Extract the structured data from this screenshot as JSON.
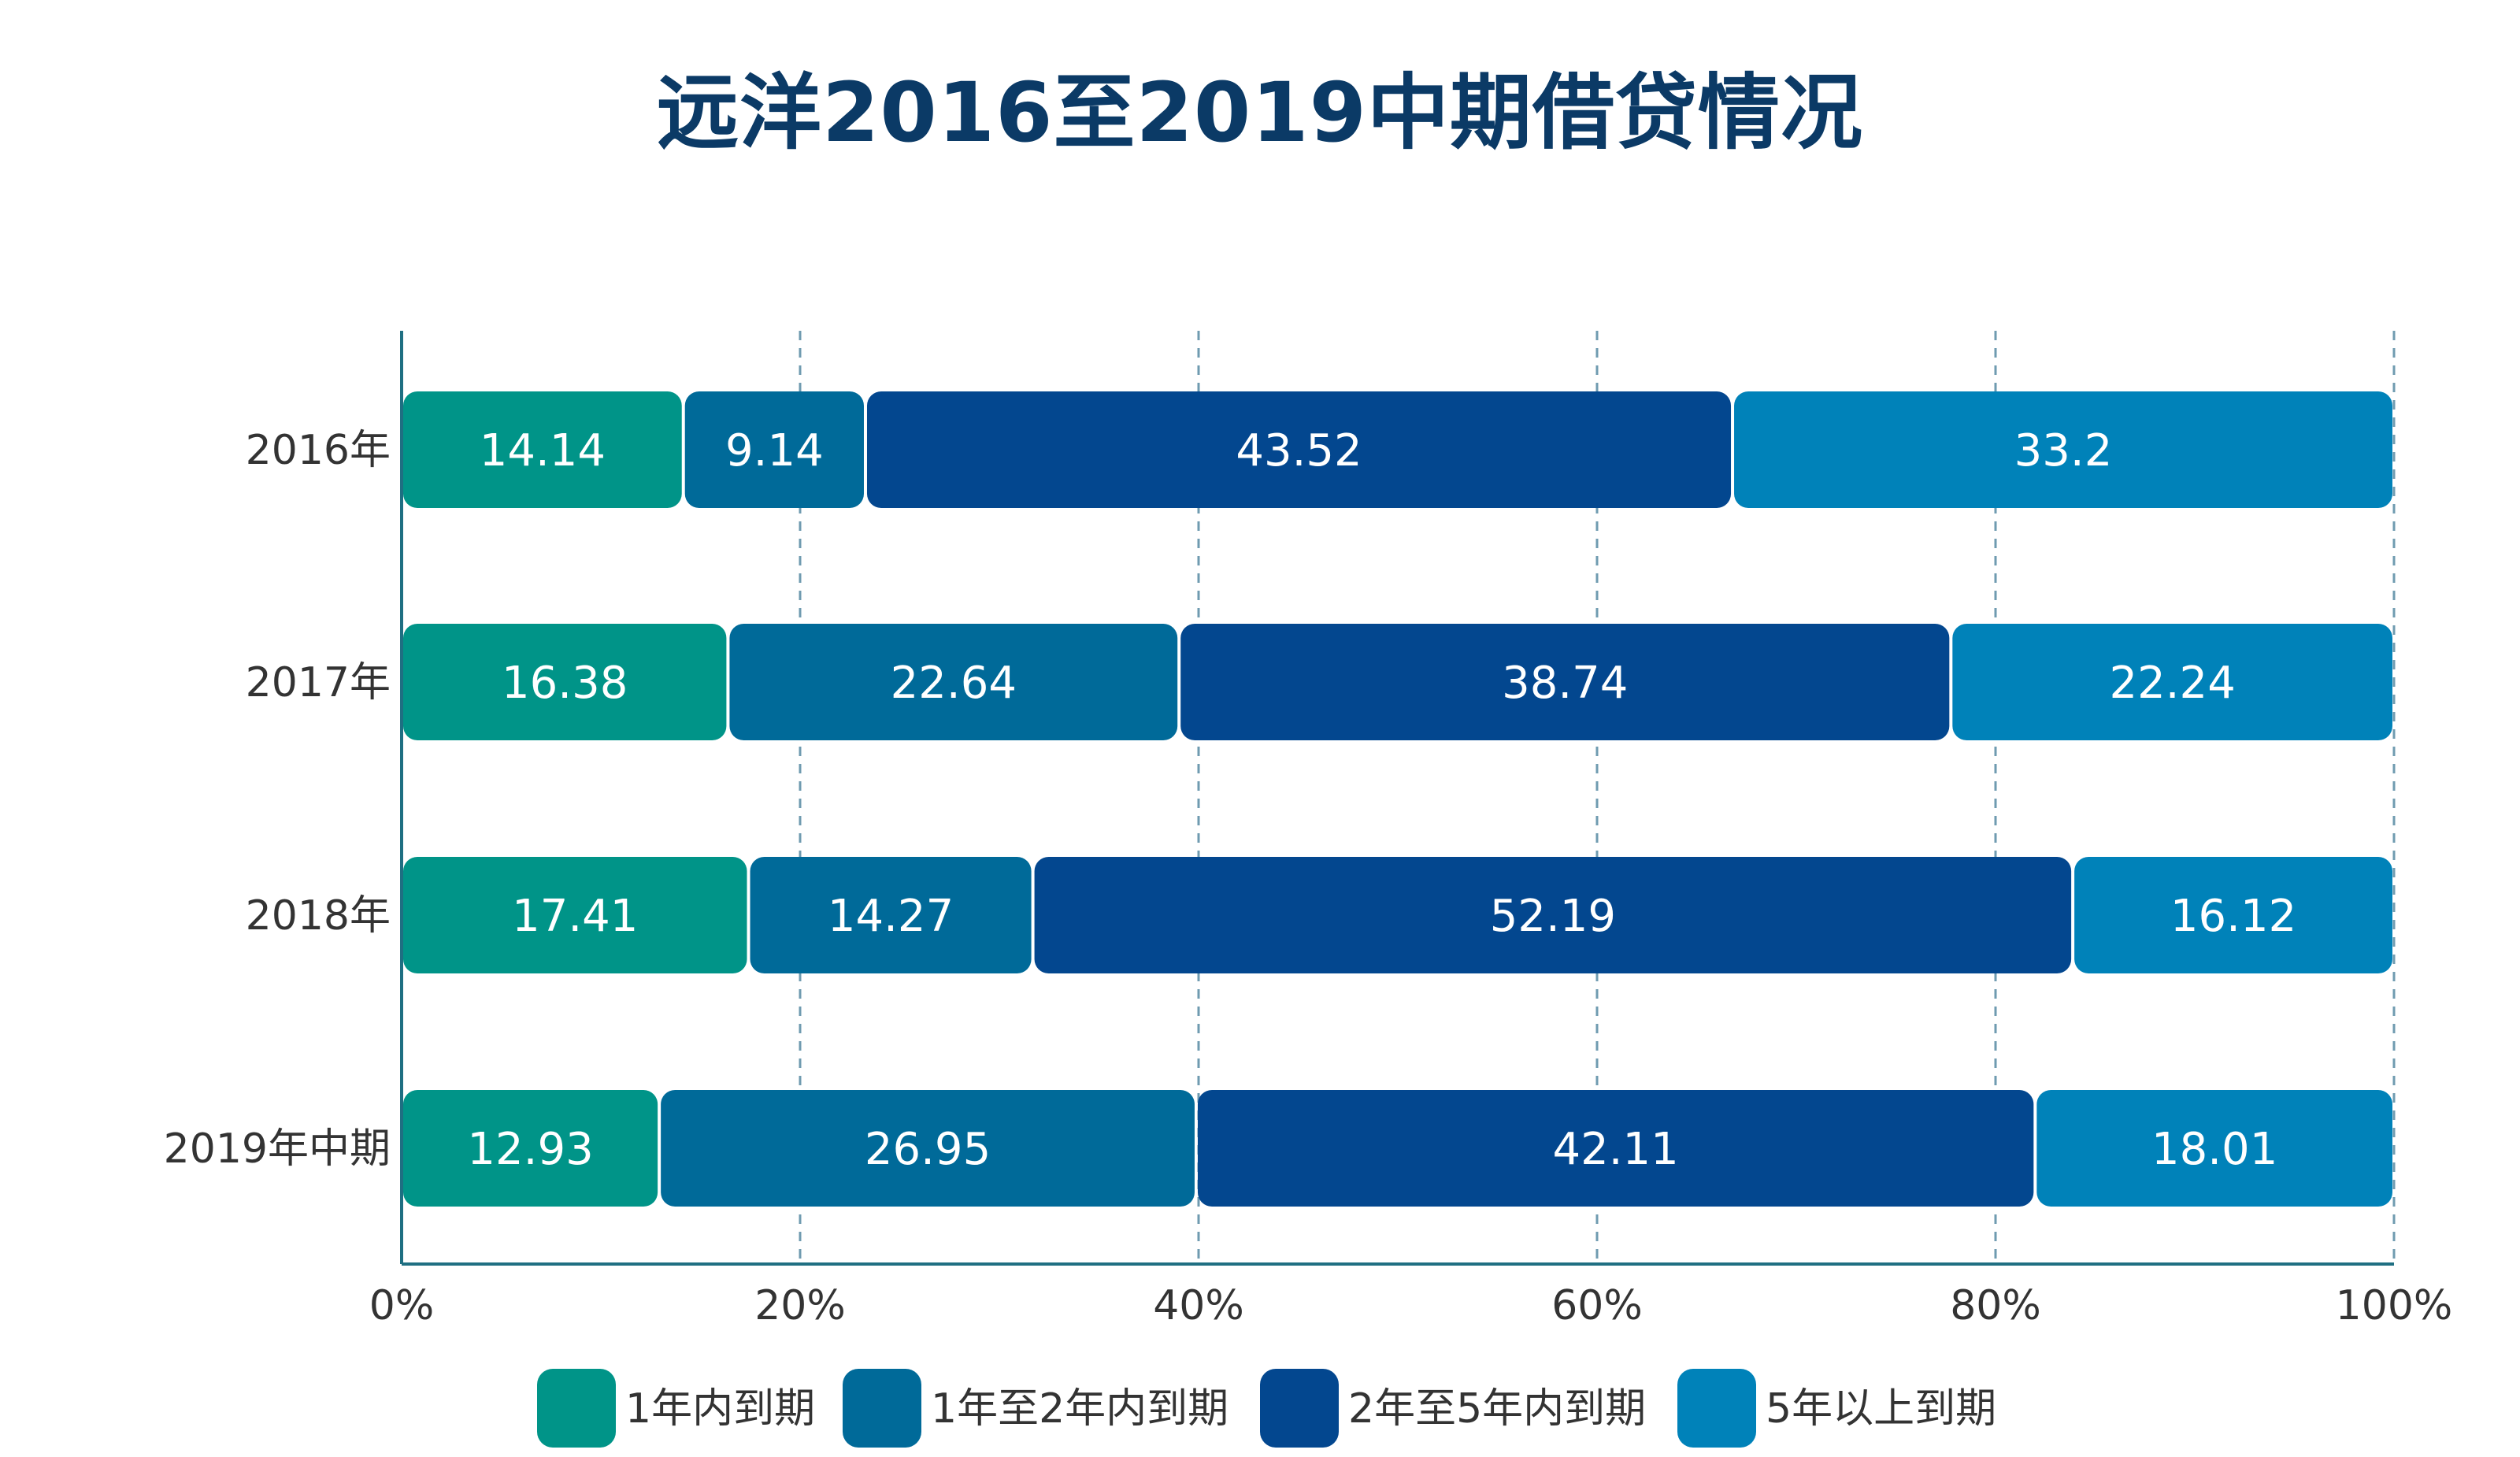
{
  "chart_data": {
    "type": "bar",
    "orientation": "horizontal",
    "stacked": true,
    "percent_stacked": true,
    "title": "远洋2016至2019中期借贷情况",
    "categories": [
      "2016年",
      "2017年",
      "2018年",
      "2019年中期"
    ],
    "series": [
      {
        "name": "1年内到期",
        "color": "#009488",
        "values": [
          14.14,
          16.38,
          17.41,
          12.93
        ]
      },
      {
        "name": "1年至2年内到期",
        "color": "#006a99",
        "values": [
          9.14,
          22.64,
          14.27,
          26.95
        ]
      },
      {
        "name": "2年至5年内到期",
        "color": "#03478f",
        "values": [
          43.52,
          38.74,
          52.19,
          42.11
        ]
      },
      {
        "name": "5年以上到期",
        "color": "#0082b9",
        "values": [
          33.2,
          22.24,
          16.12,
          18.01
        ]
      }
    ],
    "xlim": [
      0,
      100
    ],
    "xticks": [
      "0%",
      "20%",
      "40%",
      "60%",
      "80%",
      "100%"
    ],
    "xlabel": "",
    "ylabel": "",
    "grid": "vertical dashed",
    "legend": "bottom"
  }
}
